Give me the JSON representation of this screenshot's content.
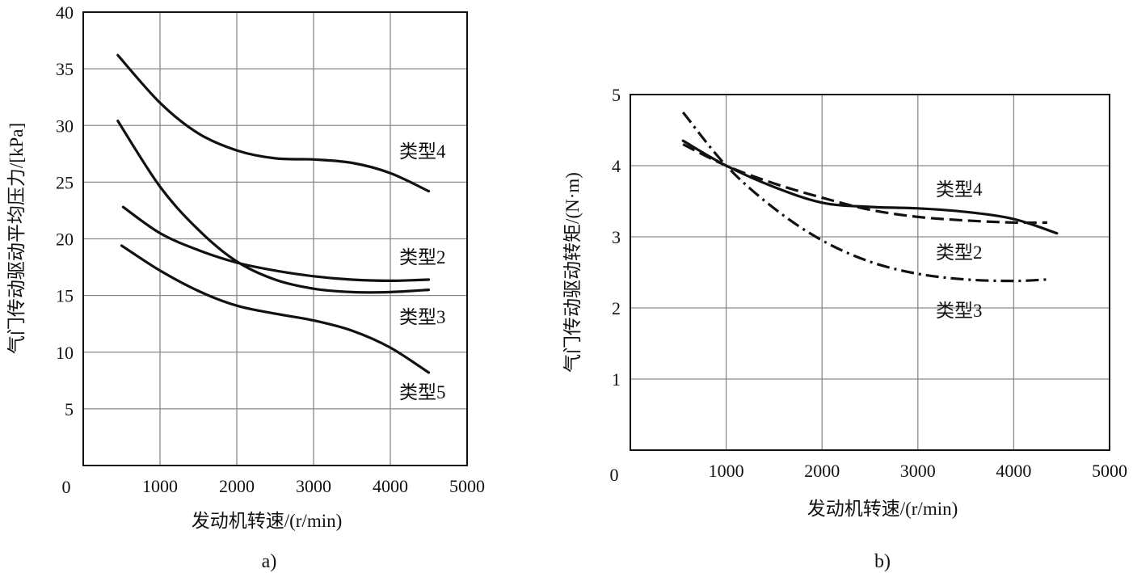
{
  "chart_data": [
    {
      "panel": "a)",
      "type": "line",
      "xlabel": "发动机转速/(r/min)",
      "ylabel": "气门传动驱动平均压力/[kPa]",
      "xlim": [
        0,
        5000
      ],
      "ylim": [
        0,
        40
      ],
      "xticks": [
        1000,
        2000,
        3000,
        4000,
        5000
      ],
      "yticks": [
        5,
        10,
        15,
        20,
        25,
        30,
        35,
        40
      ],
      "origin_label": "0",
      "grid": true,
      "series": [
        {
          "name": "类型4",
          "style": "solid",
          "x": [
            450,
            1000,
            1500,
            2000,
            2500,
            3000,
            3500,
            4000,
            4500
          ],
          "y": [
            36.2,
            32.0,
            29.3,
            27.8,
            27.1,
            27.0,
            26.7,
            25.8,
            24.2
          ]
        },
        {
          "name": "类型2",
          "style": "solid",
          "x": [
            520,
            1000,
            1500,
            2000,
            2500,
            3000,
            3500,
            4000,
            4500
          ],
          "y": [
            22.8,
            20.5,
            19.0,
            17.9,
            17.2,
            16.7,
            16.4,
            16.3,
            16.4
          ]
        },
        {
          "name": "类型3",
          "style": "solid",
          "x": [
            450,
            1000,
            1500,
            2000,
            2500,
            3000,
            3500,
            4000,
            4500
          ],
          "y": [
            30.4,
            24.6,
            20.8,
            18.0,
            16.4,
            15.6,
            15.3,
            15.3,
            15.5
          ]
        },
        {
          "name": "类型5",
          "style": "solid",
          "x": [
            500,
            1000,
            1500,
            2000,
            2500,
            3000,
            3500,
            4000,
            4500
          ],
          "y": [
            19.4,
            17.2,
            15.4,
            14.1,
            13.4,
            12.8,
            11.9,
            10.4,
            8.2
          ]
        }
      ]
    },
    {
      "panel": "b)",
      "type": "line",
      "xlabel": "发动机转速/(r/min)",
      "ylabel": "气门传动驱动转矩/(N·m)",
      "xlim": [
        0,
        5000
      ],
      "ylim": [
        0,
        5
      ],
      "xticks": [
        1000,
        2000,
        3000,
        4000,
        5000
      ],
      "yticks": [
        1,
        2,
        3,
        4,
        5
      ],
      "origin_label": "0",
      "grid": true,
      "series": [
        {
          "name": "类型4",
          "style": "solid",
          "x": [
            550,
            1000,
            1500,
            2000,
            2500,
            3000,
            3500,
            4000,
            4450
          ],
          "y": [
            4.35,
            4.0,
            3.7,
            3.48,
            3.42,
            3.4,
            3.35,
            3.25,
            3.05
          ]
        },
        {
          "name": "类型2",
          "style": "dashed",
          "x": [
            550,
            1000,
            1500,
            2000,
            2500,
            3000,
            3500,
            4000,
            4350
          ],
          "y": [
            4.3,
            4.0,
            3.75,
            3.55,
            3.38,
            3.28,
            3.23,
            3.2,
            3.2
          ]
        },
        {
          "name": "类型3",
          "style": "dashdot",
          "x": [
            550,
            1000,
            1500,
            2000,
            2500,
            3000,
            3500,
            4000,
            4350
          ],
          "y": [
            4.75,
            4.0,
            3.4,
            2.95,
            2.65,
            2.48,
            2.4,
            2.38,
            2.4
          ]
        }
      ]
    }
  ]
}
